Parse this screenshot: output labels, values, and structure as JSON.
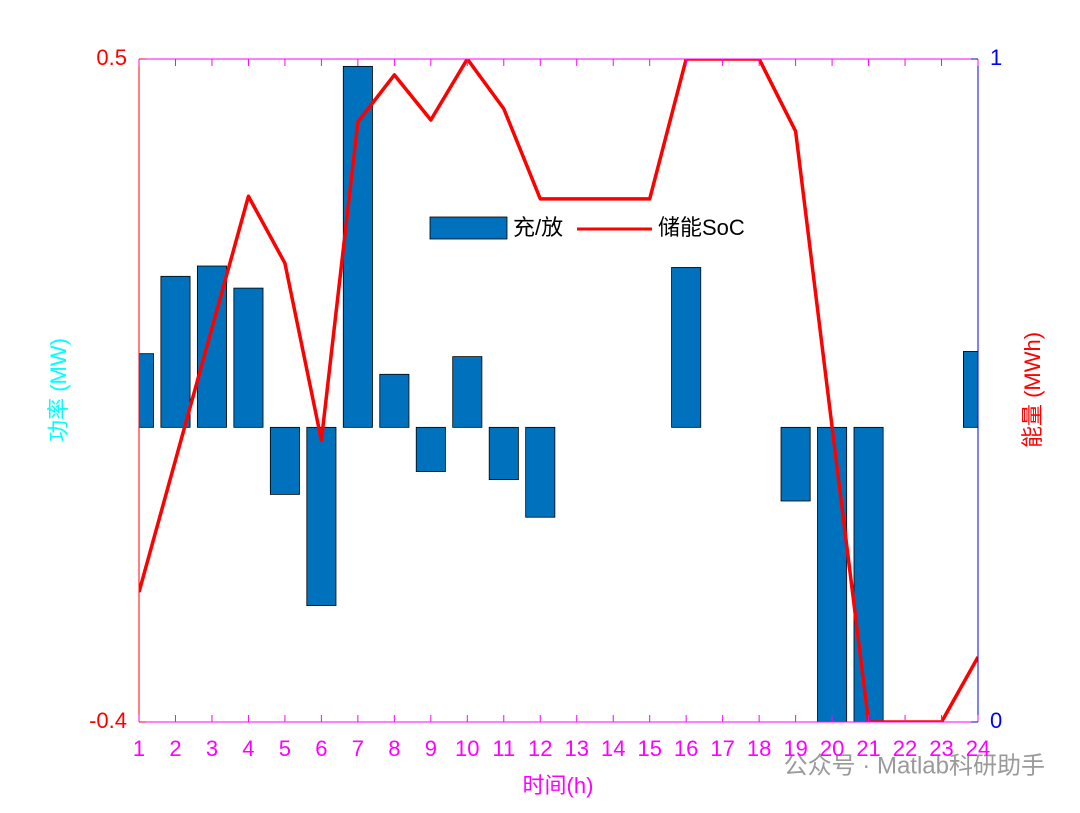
{
  "chart_data": {
    "type": "bar-line",
    "x": [
      1,
      2,
      3,
      4,
      5,
      6,
      7,
      8,
      9,
      10,
      11,
      12,
      13,
      14,
      15,
      16,
      17,
      18,
      19,
      20,
      21,
      22,
      23,
      24
    ],
    "xlim": [
      1,
      24
    ],
    "xticks": [
      1,
      2,
      3,
      4,
      5,
      6,
      7,
      8,
      9,
      10,
      11,
      12,
      13,
      14,
      15,
      16,
      17,
      18,
      19,
      20,
      21,
      22,
      23,
      24
    ],
    "ylim": [
      -0.4,
      0.5
    ],
    "yticks": [
      -0.4,
      0.5
    ],
    "y2lim": [
      0,
      1
    ],
    "y2ticks": [
      0,
      1
    ],
    "xlabel": "时间(h)",
    "ylabel": "功率 (MW)",
    "y2label": "能量 (MWh)",
    "series": [
      {
        "name": "充/放",
        "type": "bar",
        "color": "#0072bd",
        "values": [
          0.1,
          0.205,
          0.219,
          0.189,
          -0.091,
          -0.242,
          0.49,
          0.072,
          -0.06,
          0.096,
          -0.071,
          -0.122,
          0,
          0,
          0,
          0.217,
          0,
          0,
          -0.1,
          -0.4,
          -0.4,
          0,
          0,
          0.103
        ]
      },
      {
        "name": "储能SoC",
        "type": "line",
        "color": "#ff0000",
        "axis": "y2",
        "values": [
          0.196,
          0.395,
          0.594,
          0.793,
          0.692,
          0.425,
          0.905,
          0.976,
          0.908,
          1.0,
          0.925,
          0.789,
          0.789,
          0.789,
          0.789,
          1.0,
          1.0,
          1.0,
          0.891,
          0.445,
          0,
          0,
          0,
          0.098
        ]
      }
    ],
    "watermark": "公众号 · Matlab科研助手"
  }
}
